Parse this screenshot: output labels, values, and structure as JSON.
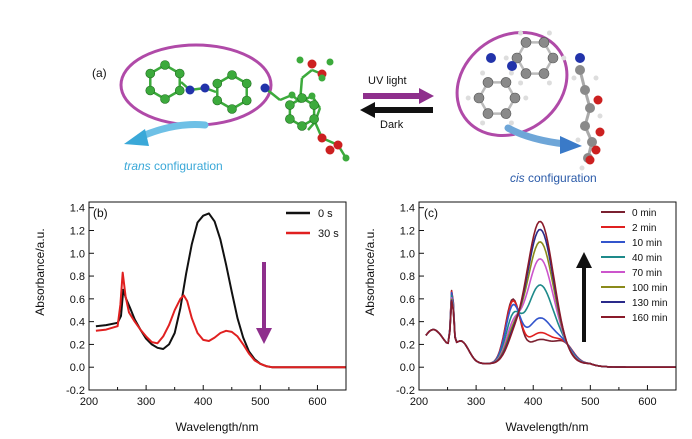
{
  "panel_a": {
    "label": "(a)",
    "uv_label": "UV light",
    "dark_label": "Dark",
    "trans_word": "trans",
    "cis_word": "cis",
    "config_word": " configuration",
    "colors": {
      "ellipse": "#b04aa8",
      "carbon_green": "#3caa3c",
      "nitrogen": "#2233aa",
      "oxygen": "#cc2020",
      "carbon_gray": "#8a8a8a",
      "uv_arrow": "#8e2f8c",
      "dark_arrow": "#111111",
      "trans_text": "#3aa8d8",
      "cis_text": "#2a5aa8"
    }
  },
  "chart_data": [
    {
      "type": "line",
      "panel_label": "(b)",
      "xlabel": "Wavelength/nm",
      "ylabel": "Absorbance/a.u.",
      "xlim": [
        200,
        650
      ],
      "ylim": [
        -0.2,
        1.45
      ],
      "xticks": [
        200,
        300,
        400,
        500,
        600
      ],
      "yticks": [
        -0.2,
        0.0,
        0.2,
        0.4,
        0.6,
        0.8,
        1.0,
        1.2,
        1.4
      ],
      "ytick_labels": [
        "-0.2",
        "0.0",
        "0.2",
        "0.4",
        "0.6",
        "0.8",
        "1.0",
        "1.2",
        "1.4"
      ],
      "legend_position": "top-right",
      "annotation": "downward arrow at 500 nm (purple)",
      "series": [
        {
          "name": "0 s",
          "color": "#111111",
          "x": [
            212,
            230,
            250,
            256,
            260,
            265,
            272,
            280,
            290,
            300,
            310,
            320,
            330,
            340,
            350,
            360,
            370,
            380,
            390,
            400,
            410,
            420,
            430,
            440,
            450,
            460,
            470,
            480,
            490,
            500,
            510,
            520,
            540,
            580,
            650
          ],
          "y": [
            0.36,
            0.37,
            0.39,
            0.45,
            0.68,
            0.6,
            0.52,
            0.42,
            0.33,
            0.25,
            0.2,
            0.17,
            0.16,
            0.2,
            0.3,
            0.52,
            0.82,
            1.08,
            1.27,
            1.33,
            1.35,
            1.28,
            1.12,
            0.9,
            0.66,
            0.43,
            0.26,
            0.14,
            0.07,
            0.03,
            0.01,
            0.0,
            0.0,
            0.0,
            0.0
          ]
        },
        {
          "name": "30 s",
          "color": "#e02020",
          "x": [
            212,
            230,
            250,
            255,
            259,
            264,
            270,
            280,
            290,
            300,
            310,
            320,
            330,
            340,
            350,
            360,
            366,
            372,
            380,
            390,
            400,
            410,
            420,
            430,
            440,
            450,
            460,
            470,
            480,
            490,
            500,
            510,
            520,
            540,
            580,
            650
          ],
          "y": [
            0.32,
            0.33,
            0.36,
            0.55,
            0.83,
            0.62,
            0.48,
            0.4,
            0.33,
            0.27,
            0.22,
            0.21,
            0.27,
            0.37,
            0.5,
            0.6,
            0.63,
            0.58,
            0.43,
            0.3,
            0.24,
            0.23,
            0.26,
            0.3,
            0.32,
            0.31,
            0.27,
            0.2,
            0.12,
            0.06,
            0.03,
            0.01,
            0.0,
            0.0,
            0.0,
            0.0
          ]
        }
      ]
    },
    {
      "type": "line",
      "panel_label": "(c)",
      "xlabel": "Wavelength/nm",
      "ylabel": "Absorbance/a.u.",
      "xlim": [
        200,
        650
      ],
      "ylim": [
        -0.2,
        1.45
      ],
      "xticks": [
        200,
        300,
        400,
        500,
        600
      ],
      "yticks": [
        -0.2,
        0.0,
        0.2,
        0.4,
        0.6,
        0.8,
        1.0,
        1.2,
        1.4
      ],
      "ytick_labels": [
        "-0.2",
        "0.0",
        "0.2",
        "0.4",
        "0.6",
        "0.8",
        "1.0",
        "1.2",
        "1.4"
      ],
      "legend_position": "top-right",
      "annotation": "upward arrow at 485 nm (black)",
      "series": [
        {
          "name": "0 min",
          "color": "#7a2030",
          "peak": 0.27
        },
        {
          "name": "2 min",
          "color": "#e02020",
          "peak": 0.33
        },
        {
          "name": "10 min",
          "color": "#3355cc",
          "peak": 0.46
        },
        {
          "name": "40 min",
          "color": "#1e8a8a",
          "peak": 0.75
        },
        {
          "name": "70 min",
          "color": "#cc55cc",
          "peak": 0.98
        },
        {
          "name": "100 min",
          "color": "#8a8a1a",
          "peak": 1.13
        },
        {
          "name": "130 min",
          "color": "#2a2a8a",
          "peak": 1.24
        },
        {
          "name": "160 min",
          "color": "#8a1a2a",
          "peak": 1.31
        }
      ]
    }
  ]
}
